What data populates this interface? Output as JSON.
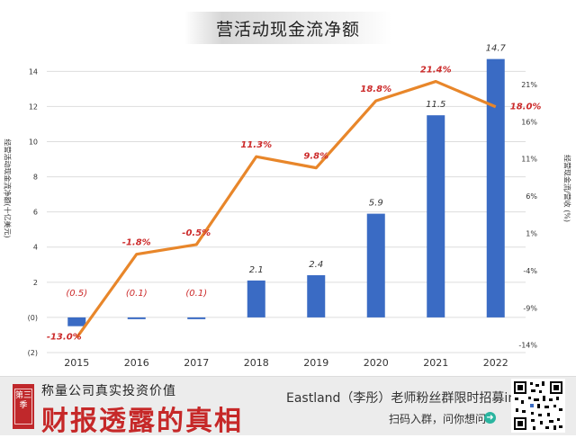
{
  "chart_data": {
    "type": "bar",
    "title": "营活动现金流净额",
    "ylabel_left": "经营活动现金流净额(十亿美元)",
    "ylabel_right": "经营现金流/营收 (%)",
    "categories": [
      "2015",
      "2016",
      "2017",
      "2018",
      "2019",
      "2020",
      "2021",
      "2022"
    ],
    "values": [
      -0.5,
      -0.1,
      -0.1,
      2.1,
      2.4,
      5.9,
      11.5,
      14.7
    ],
    "value_labels": [
      "(0.5)",
      "(0.1)",
      "(0.1)",
      "2.1",
      "2.4",
      "5.9",
      "11.5",
      "14.7"
    ],
    "left_ticks": [
      "(2)",
      "(0)",
      "2",
      "4",
      "6",
      "8",
      "10",
      "12",
      "14"
    ],
    "left_tick_values": [
      -2,
      0,
      2,
      4,
      6,
      8,
      10,
      12,
      14
    ],
    "ylim": [
      -2,
      15.5
    ],
    "right_ticks": [
      "-14%",
      "-9%",
      "-4%",
      "1%",
      "6%",
      "11%",
      "16%",
      "21%"
    ],
    "right_tick_values": [
      -14,
      -9,
      -4,
      1,
      6,
      11,
      16,
      21
    ],
    "ylim_right": [
      -15,
      26.3
    ],
    "line_series": {
      "values": [
        -13.0,
        -1.8,
        -0.5,
        11.3,
        9.8,
        18.8,
        21.4,
        18.0
      ],
      "labels": [
        "-13.0%",
        "-1.8%",
        "-0.5%",
        "11.3%",
        "9.8%",
        "18.8%",
        "21.4%",
        "18.0%"
      ]
    },
    "colors": {
      "bar": "#3a6bc4",
      "line": "#e8862a",
      "line_label": "#cc2b2b",
      "grid": "#dddddd"
    },
    "grid": true
  },
  "footer": {
    "badge_text": "第三季",
    "slogan": "称量公司真实投资价值",
    "brand": "财报透露的真相",
    "promo": "Eastland（李彤）老师粉丝群限时招募ing",
    "scan": "扫码入群，问你想问",
    "arrow": "➜"
  }
}
